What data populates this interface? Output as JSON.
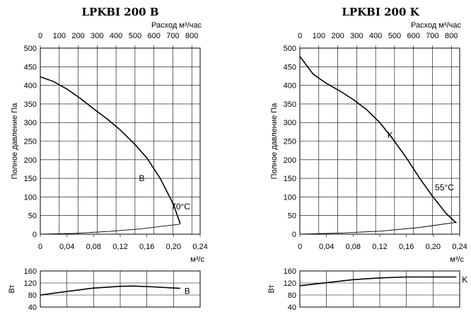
{
  "chart_data": [
    {
      "type": "line",
      "title": "LPKBI 200 B",
      "top_axis": {
        "label": "Расход м³/час",
        "ticks": [
          "0",
          "100",
          "200",
          "300",
          "400",
          "500",
          "600",
          "700",
          "800"
        ],
        "range": [
          0,
          844
        ]
      },
      "x": {
        "label": "м³/с",
        "ticks": [
          "0",
          "0,04",
          "0,08",
          "0,12",
          "0,16",
          "0,20",
          "0,24"
        ],
        "range": [
          0,
          0.24
        ]
      },
      "y": {
        "label": "Полное давление Па",
        "ticks": [
          "0",
          "50",
          "100",
          "150",
          "200",
          "250",
          "300",
          "350",
          "400",
          "450",
          "500"
        ],
        "range": [
          0,
          500
        ]
      },
      "grid": true,
      "series": [
        {
          "name": "B",
          "x": [
            0,
            0.02,
            0.04,
            0.06,
            0.08,
            0.1,
            0.12,
            0.14,
            0.16,
            0.18,
            0.2,
            0.21
          ],
          "y": [
            423,
            410,
            390,
            365,
            337,
            310,
            280,
            245,
            205,
            150,
            80,
            28
          ]
        },
        {
          "name": "70°C",
          "x": [
            0,
            0.05,
            0.1,
            0.15,
            0.21
          ],
          "y": [
            0,
            2,
            7,
            14,
            27
          ]
        }
      ],
      "power": {
        "ylabel": "Вт",
        "ticks": [
          "40",
          "80",
          "120",
          "160"
        ],
        "range": [
          40,
          160
        ],
        "series": [
          {
            "name": "B",
            "x": [
              0,
              0.04,
              0.08,
              0.12,
              0.14,
              0.17,
              0.21
            ],
            "y": [
              80,
              92,
              103,
              109,
              110,
              107,
              102
            ]
          }
        ]
      }
    },
    {
      "type": "line",
      "title": "LPKBI 200 K",
      "top_axis": {
        "label": "Расход м³/час",
        "ticks": [
          "0",
          "100",
          "200",
          "300",
          "400",
          "500",
          "600",
          "700",
          "800"
        ],
        "range": [
          0,
          844
        ]
      },
      "x": {
        "label": "м³/с",
        "ticks": [
          "0",
          "0,04",
          "0,08",
          "0,12",
          "0,16",
          "0,20",
          "0,24"
        ],
        "range": [
          0,
          0.24
        ]
      },
      "y": {
        "label": "Полное давление Па",
        "ticks": [
          "0",
          "50",
          "100",
          "150",
          "200",
          "250",
          "300",
          "350",
          "400",
          "450",
          "500"
        ],
        "range": [
          0,
          500
        ]
      },
      "grid": true,
      "series": [
        {
          "name": "K",
          "x": [
            0,
            0.02,
            0.04,
            0.06,
            0.08,
            0.1,
            0.12,
            0.14,
            0.16,
            0.18,
            0.2,
            0.22,
            0.235
          ],
          "y": [
            478,
            430,
            405,
            385,
            362,
            335,
            300,
            255,
            205,
            150,
            100,
            55,
            30
          ]
        },
        {
          "name": "55°C",
          "x": [
            0,
            0.06,
            0.12,
            0.18,
            0.235
          ],
          "y": [
            0,
            3,
            8,
            18,
            32
          ]
        }
      ],
      "power": {
        "ylabel": "Вт",
        "ticks": [
          "40",
          "80",
          "120",
          "160"
        ],
        "range": [
          40,
          160
        ],
        "series": [
          {
            "name": "K",
            "x": [
              0,
              0.04,
              0.08,
              0.12,
              0.16,
              0.2,
              0.235
            ],
            "y": [
              111,
              121,
              131,
              137,
              140,
              140,
              140
            ]
          }
        ]
      }
    }
  ]
}
